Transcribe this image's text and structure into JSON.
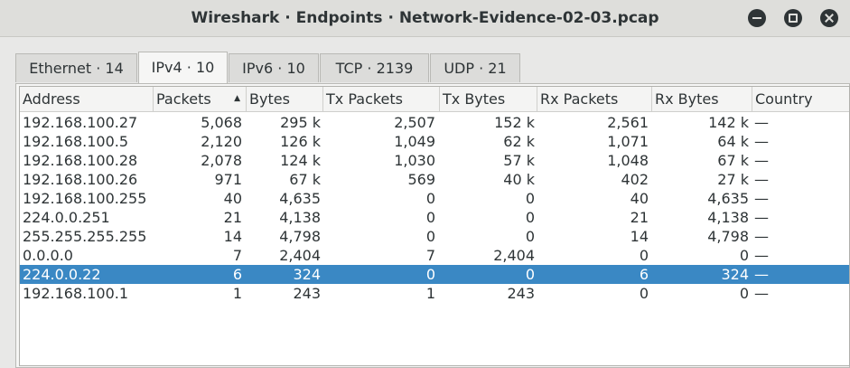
{
  "window": {
    "title": "Wireshark · Endpoints · Network-Evidence-02-03.pcap"
  },
  "tabs": [
    {
      "label": "Ethernet · 14"
    },
    {
      "label": "IPv4 · 10"
    },
    {
      "label": "IPv6 · 10"
    },
    {
      "label": "TCP · 2139"
    },
    {
      "label": "UDP · 21"
    }
  ],
  "active_tab": "IPv4 · 10",
  "table": {
    "columns": [
      "Address",
      "Packets",
      "Bytes",
      "Tx Packets",
      "Tx Bytes",
      "Rx Packets",
      "Rx Bytes",
      "Country"
    ],
    "sort_column": "Packets",
    "sort_direction": "descending",
    "sort_indicator": "▲",
    "selected_row": "224.0.0.22",
    "rows": [
      [
        "192.168.100.27",
        "5,068",
        "295 k",
        "2,507",
        "152 k",
        "2,561",
        "142 k",
        "—"
      ],
      [
        "192.168.100.5",
        "2,120",
        "126 k",
        "1,049",
        "62 k",
        "1,071",
        "64 k",
        "—"
      ],
      [
        "192.168.100.28",
        "2,078",
        "124 k",
        "1,030",
        "57 k",
        "1,048",
        "67 k",
        "—"
      ],
      [
        "192.168.100.26",
        "971",
        "67 k",
        "569",
        "40 k",
        "402",
        "27 k",
        "—"
      ],
      [
        "192.168.100.255",
        "40",
        "4,635",
        "0",
        "0",
        "40",
        "4,635",
        "—"
      ],
      [
        "224.0.0.251",
        "21",
        "4,138",
        "0",
        "0",
        "21",
        "4,138",
        "—"
      ],
      [
        "255.255.255.255",
        "14",
        "4,798",
        "0",
        "0",
        "14",
        "4,798",
        "—"
      ],
      [
        "0.0.0.0",
        "7",
        "2,404",
        "7",
        "2,404",
        "0",
        "0",
        "—"
      ],
      [
        "224.0.0.22",
        "6",
        "324",
        "0",
        "0",
        "6",
        "324",
        "—"
      ],
      [
        "192.168.100.1",
        "1",
        "243",
        "1",
        "243",
        "0",
        "0",
        "—"
      ]
    ]
  },
  "icons": {
    "minimize": "minimize-icon",
    "maximize": "maximize-icon",
    "close": "close-icon"
  },
  "colors": {
    "selection": "#3a88c4",
    "titlebar": "#dededb"
  }
}
